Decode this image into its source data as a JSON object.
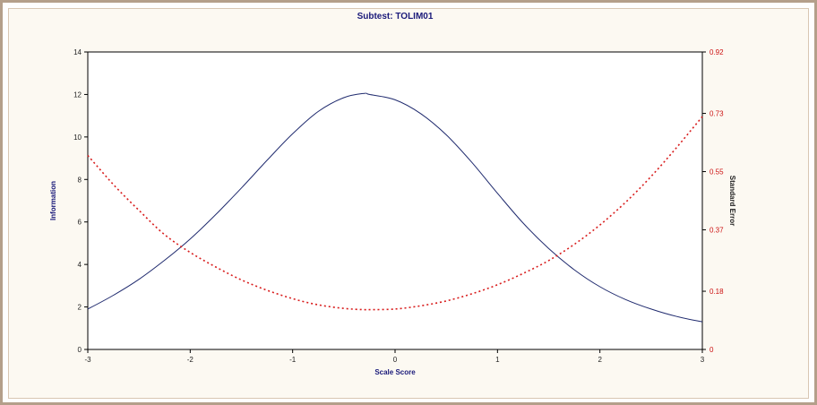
{
  "chart_data": {
    "type": "line",
    "title": "Subtest: TOLIM01",
    "xlabel": "Scale Score",
    "ylabel": "Information",
    "ylabel_right": "Standard Error",
    "xlim": [
      -3,
      3
    ],
    "ylim": [
      0,
      14
    ],
    "ylim_right": [
      0,
      0.92
    ],
    "x_ticks": [
      "-3",
      "-2",
      "-1",
      "0",
      "1",
      "2",
      "3"
    ],
    "y_ticks": [
      "0",
      "2",
      "4",
      "6",
      "8",
      "10",
      "12",
      "14"
    ],
    "y_ticks_right": [
      "0",
      "0.18",
      "0.37",
      "0.55",
      "0.73",
      "0.92"
    ],
    "grid": false,
    "series": [
      {
        "axis": "left",
        "color": "#1f2a6e",
        "style": "solid",
        "x": [
          -3.0,
          -2.75,
          -2.5,
          -2.25,
          -2.0,
          -1.75,
          -1.5,
          -1.25,
          -1.0,
          -0.75,
          -0.5,
          -0.3,
          -0.25,
          0.0,
          0.25,
          0.5,
          0.75,
          1.0,
          1.25,
          1.5,
          1.75,
          2.0,
          2.25,
          2.5,
          2.75,
          3.0
        ],
        "values": [
          1.9,
          2.55,
          3.3,
          4.2,
          5.2,
          6.35,
          7.6,
          8.9,
          10.15,
          11.2,
          11.85,
          12.05,
          12.0,
          11.75,
          11.1,
          10.1,
          8.8,
          7.35,
          5.95,
          4.75,
          3.75,
          2.95,
          2.35,
          1.9,
          1.55,
          1.3
        ]
      },
      {
        "axis": "right",
        "color": "#d81c1c",
        "style": "dashed",
        "x": [
          -3.0,
          -2.75,
          -2.5,
          -2.25,
          -2.0,
          -1.75,
          -1.5,
          -1.25,
          -1.0,
          -0.75,
          -0.5,
          -0.3,
          -0.25,
          0.0,
          0.25,
          0.5,
          0.75,
          1.0,
          1.25,
          1.5,
          1.75,
          2.0,
          2.25,
          2.5,
          2.75,
          3.0
        ],
        "values": [
          0.6,
          0.51,
          0.43,
          0.355,
          0.3,
          0.255,
          0.215,
          0.183,
          0.157,
          0.138,
          0.127,
          0.123,
          0.123,
          0.125,
          0.135,
          0.15,
          0.172,
          0.2,
          0.235,
          0.275,
          0.325,
          0.385,
          0.455,
          0.535,
          0.625,
          0.72
        ]
      }
    ]
  }
}
